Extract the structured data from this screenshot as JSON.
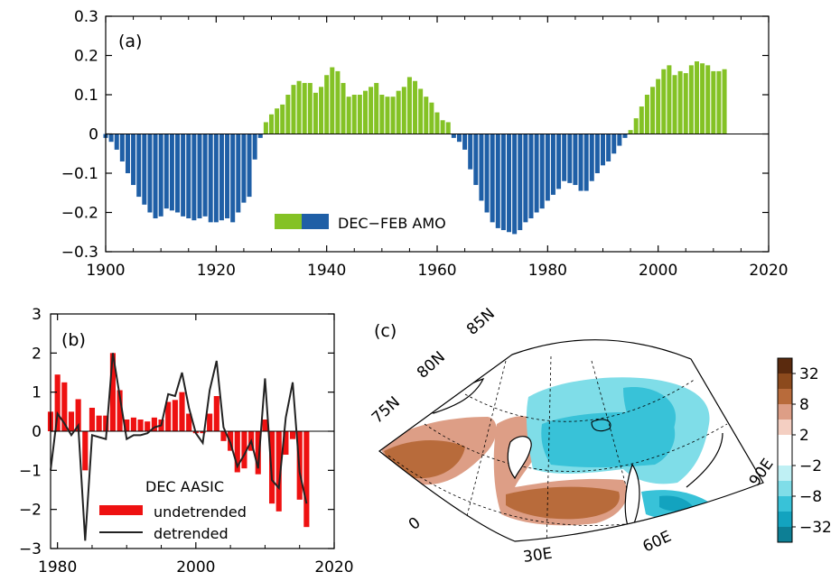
{
  "chart_data": [
    {
      "id": "a",
      "type": "bar",
      "panel_label": "(a)",
      "legend": "DEC−FEB AMO",
      "xlim": [
        1900,
        2020
      ],
      "ylim": [
        -0.3,
        0.3
      ],
      "xticks": [
        1900,
        1920,
        1940,
        1960,
        1980,
        2000,
        2020
      ],
      "yticks": [
        {
          "v": 0.3,
          "label": "0.3"
        },
        {
          "v": 0.2,
          "label": "0.2"
        },
        {
          "v": 0.1,
          "label": "0.1"
        },
        {
          "v": 0,
          "label": "0"
        },
        {
          "v": -0.1,
          "label": "−0.1"
        },
        {
          "v": -0.2,
          "label": "−0.2"
        },
        {
          "v": -0.3,
          "label": "−0.3"
        }
      ],
      "positive_color": "#84c225",
      "negative_color": "#1f5fa6",
      "x_start": 1900,
      "values": [
        -0.01,
        -0.02,
        -0.04,
        -0.07,
        -0.1,
        -0.13,
        -0.16,
        -0.18,
        -0.2,
        -0.215,
        -0.21,
        -0.19,
        -0.195,
        -0.2,
        -0.21,
        -0.215,
        -0.22,
        -0.215,
        -0.21,
        -0.225,
        -0.225,
        -0.22,
        -0.215,
        -0.225,
        -0.2,
        -0.175,
        -0.16,
        -0.065,
        -0.01,
        0.03,
        0.05,
        0.065,
        0.075,
        0.1,
        0.125,
        0.135,
        0.13,
        0.13,
        0.105,
        0.12,
        0.15,
        0.17,
        0.16,
        0.13,
        0.095,
        0.1,
        0.1,
        0.11,
        0.12,
        0.13,
        0.1,
        0.095,
        0.095,
        0.11,
        0.12,
        0.145,
        0.135,
        0.115,
        0.095,
        0.08,
        0.055,
        0.035,
        0.03,
        -0.01,
        -0.02,
        -0.04,
        -0.09,
        -0.13,
        -0.17,
        -0.2,
        -0.225,
        -0.24,
        -0.245,
        -0.25,
        -0.255,
        -0.245,
        -0.225,
        -0.215,
        -0.2,
        -0.19,
        -0.17,
        -0.155,
        -0.14,
        -0.12,
        -0.125,
        -0.13,
        -0.145,
        -0.145,
        -0.12,
        -0.1,
        -0.08,
        -0.07,
        -0.05,
        -0.03,
        -0.01,
        0.01,
        0.04,
        0.07,
        0.1,
        0.12,
        0.14,
        0.165,
        0.175,
        0.15,
        0.16,
        0.155,
        0.175,
        0.185,
        0.18,
        0.175,
        0.16,
        0.16,
        0.165
      ]
    },
    {
      "id": "b",
      "type": "bar",
      "panel_label": "(b)",
      "legend_title": "DEC AASIC",
      "legend_entries": [
        "undetrended",
        "detrended"
      ],
      "xlim": [
        1979,
        2020
      ],
      "ylim": [
        -3,
        3
      ],
      "xticks": [
        1980,
        2000,
        2020
      ],
      "yticks": [
        {
          "v": 3,
          "label": "3"
        },
        {
          "v": 2,
          "label": "2"
        },
        {
          "v": 1,
          "label": "1"
        },
        {
          "v": 0,
          "label": "0"
        },
        {
          "v": -1,
          "label": "−1"
        },
        {
          "v": -2,
          "label": "−2"
        },
        {
          "v": -3,
          "label": "−3"
        }
      ],
      "bar_color": "#ee1111",
      "line_color": "#222222",
      "x": [
        1979,
        1980,
        1981,
        1982,
        1983,
        1984,
        1985,
        1986,
        1987,
        1988,
        1989,
        1990,
        1991,
        1992,
        1993,
        1994,
        1995,
        1996,
        1997,
        1998,
        1999,
        2000,
        2001,
        2002,
        2003,
        2004,
        2005,
        2006,
        2007,
        2008,
        2009,
        2010,
        2011,
        2012,
        2013,
        2014,
        2015,
        2016
      ],
      "undetrended": [
        0.5,
        1.45,
        1.25,
        0.5,
        0.82,
        -1.0,
        0.6,
        0.4,
        0.4,
        2.0,
        1.05,
        0.3,
        0.35,
        0.3,
        0.25,
        0.35,
        0.3,
        0.75,
        0.8,
        1.0,
        0.45,
        -0.05,
        -0.05,
        0.45,
        0.9,
        -0.25,
        -0.5,
        -1.05,
        -0.95,
        -0.5,
        -1.1,
        0.3,
        -1.85,
        -2.05,
        -0.6,
        -0.2,
        -1.75,
        -2.45
      ],
      "detrended": [
        -1.0,
        0.45,
        0.2,
        -0.1,
        0.15,
        -2.8,
        -0.1,
        -0.15,
        -0.2,
        2.0,
        0.9,
        -0.2,
        -0.1,
        -0.1,
        -0.05,
        0.1,
        0.15,
        0.95,
        0.9,
        1.5,
        0.6,
        -0.05,
        -0.3,
        1.05,
        1.8,
        0.1,
        -0.3,
        -0.9,
        -0.6,
        -0.25,
        -0.95,
        1.35,
        -1.25,
        -1.45,
        0.35,
        1.25,
        -1.05,
        -1.85
      ]
    },
    {
      "id": "c",
      "type": "heatmap",
      "panel_label": "(c)",
      "lat_labels": [
        "75N",
        "80N",
        "85N"
      ],
      "lon_labels": [
        "0",
        "30E",
        "60E",
        "90E"
      ],
      "colorbar_labels": [
        "32",
        "8",
        "2",
        "−2",
        "−8",
        "−32"
      ],
      "colorbar_colors": [
        "#5a2a0e",
        "#8c4a1d",
        "#b86b3b",
        "#dd9e86",
        "#f4cfc2",
        "#ffffff",
        "#ffffff",
        "#bff0f4",
        "#7fdde8",
        "#38c2d8",
        "#13a3bf",
        "#0d7f95"
      ]
    }
  ]
}
